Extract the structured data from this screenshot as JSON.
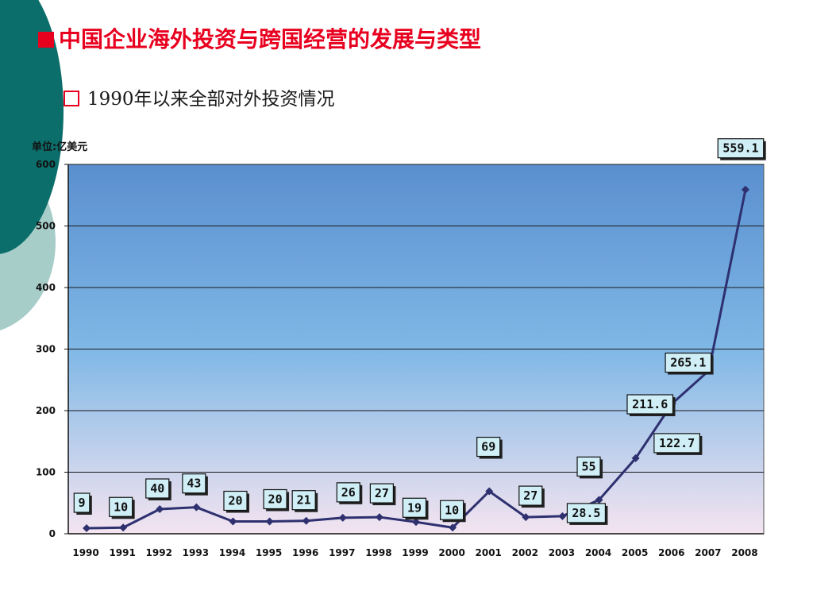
{
  "slide": {
    "title": "中国企业海外投资与跨国经营的发展与类型",
    "subtitle": "1990年以来全部对外投资情况"
  },
  "chart_data": {
    "type": "line",
    "unit_label": "单位:亿美元",
    "categories": [
      "1990",
      "1991",
      "1992",
      "1993",
      "1994",
      "1995",
      "1996",
      "1997",
      "1998",
      "1999",
      "2000",
      "2001",
      "2002",
      "2003",
      "2004",
      "2005",
      "2006",
      "2007",
      "2008"
    ],
    "values": [
      9,
      10,
      40,
      43,
      20,
      20,
      21,
      26,
      27,
      19,
      10,
      69,
      27,
      28.5,
      55,
      122.7,
      211.6,
      265.1,
      559.1
    ],
    "data_labels": [
      "9",
      "10",
      "40",
      "43",
      "20",
      "20",
      "21",
      "26",
      "27",
      "19",
      "10",
      "69",
      "27",
      "28.5",
      "55",
      "122.7",
      "211.6",
      "265.1",
      "559.1"
    ],
    "ylim": [
      0,
      600
    ],
    "yticks": [
      0,
      100,
      200,
      300,
      400,
      500,
      600
    ],
    "grid": true,
    "colors": {
      "line": "#2e3070",
      "plot_top": "#5a8fcf",
      "plot_mid": "#7fb8e6",
      "plot_bottom": "#f4e4f0",
      "label_box": "#cfeef6"
    }
  }
}
